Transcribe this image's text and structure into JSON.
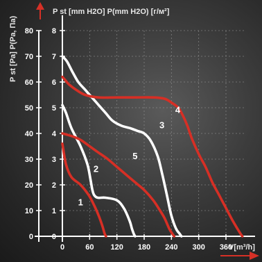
{
  "chart_data": {
    "type": "line",
    "xlabel": "V[m³/h]",
    "ylabel_left": "P st [Pa] P(Pa, Па)",
    "ylabel_right": "P st [mm H2O] P(mm H2O) [г/м²]",
    "xlim": [
      0,
      400
    ],
    "ylim_left": [
      0,
      80
    ],
    "ylim_right": [
      0,
      8
    ],
    "x_ticks": [
      0,
      60,
      120,
      180,
      240,
      300,
      360
    ],
    "y_ticks_left": [
      0,
      10,
      20,
      30,
      40,
      50,
      60,
      70,
      80
    ],
    "y_ticks_right": [
      0,
      1,
      2,
      3,
      4,
      5,
      6,
      7,
      8
    ],
    "grid": true,
    "series": [
      {
        "name": "1",
        "color": "#d62f25",
        "label_at": [
          80,
          12
        ],
        "x": [
          0,
          8,
          20,
          40,
          58,
          70,
          80,
          88,
          93,
          96
        ],
        "y": [
          36,
          28,
          23,
          20,
          16,
          12,
          8,
          4,
          1,
          0
        ]
      },
      {
        "name": "2",
        "color": "#ffffff",
        "label_at": [
          148,
          25
        ],
        "x": [
          0,
          8,
          20,
          40,
          55,
          62,
          66,
          70,
          78,
          95,
          120,
          135,
          148,
          153,
          157,
          160
        ],
        "y": [
          51,
          48,
          42,
          35,
          28,
          22,
          18,
          16,
          15,
          15,
          14,
          11,
          6,
          3,
          1,
          0
        ]
      },
      {
        "name": "3",
        "color": "#ffffff",
        "label_at": [
          438,
          42
        ],
        "x": [
          0,
          10,
          22,
          35,
          50,
          65,
          80,
          95,
          110,
          130,
          150,
          165,
          180,
          195,
          210,
          220,
          230,
          240,
          250,
          258,
          262
        ],
        "y": [
          70,
          68,
          64,
          60,
          57,
          54,
          51,
          48,
          45,
          43,
          42,
          41,
          40,
          37,
          31,
          24,
          16,
          8,
          3,
          1,
          0
        ]
      },
      {
        "name": "4",
        "color": "#d62f25",
        "label_at": [
          508,
          48
        ],
        "x": [
          0,
          5,
          15,
          30,
          50,
          80,
          120,
          160,
          200,
          225,
          240,
          255,
          265,
          275,
          285,
          300,
          315,
          330,
          345,
          360,
          375,
          385,
          392,
          396
        ],
        "y": [
          62,
          61,
          59,
          57,
          55,
          54,
          54,
          54,
          54,
          53.5,
          52,
          50,
          47,
          43,
          38,
          32,
          27,
          21,
          16,
          11,
          6,
          3,
          1,
          0
        ]
      },
      {
        "name": "5",
        "color": "#d62f25",
        "label_at": [
          320,
          30
        ],
        "x": [
          0,
          20,
          40,
          60,
          80,
          100,
          120,
          140,
          160,
          180,
          200,
          215,
          225,
          235,
          242,
          246
        ],
        "y": [
          40,
          39,
          37.5,
          35,
          32.5,
          30,
          27,
          24,
          21,
          18,
          14,
          10,
          7,
          3,
          1,
          0
        ]
      }
    ]
  }
}
